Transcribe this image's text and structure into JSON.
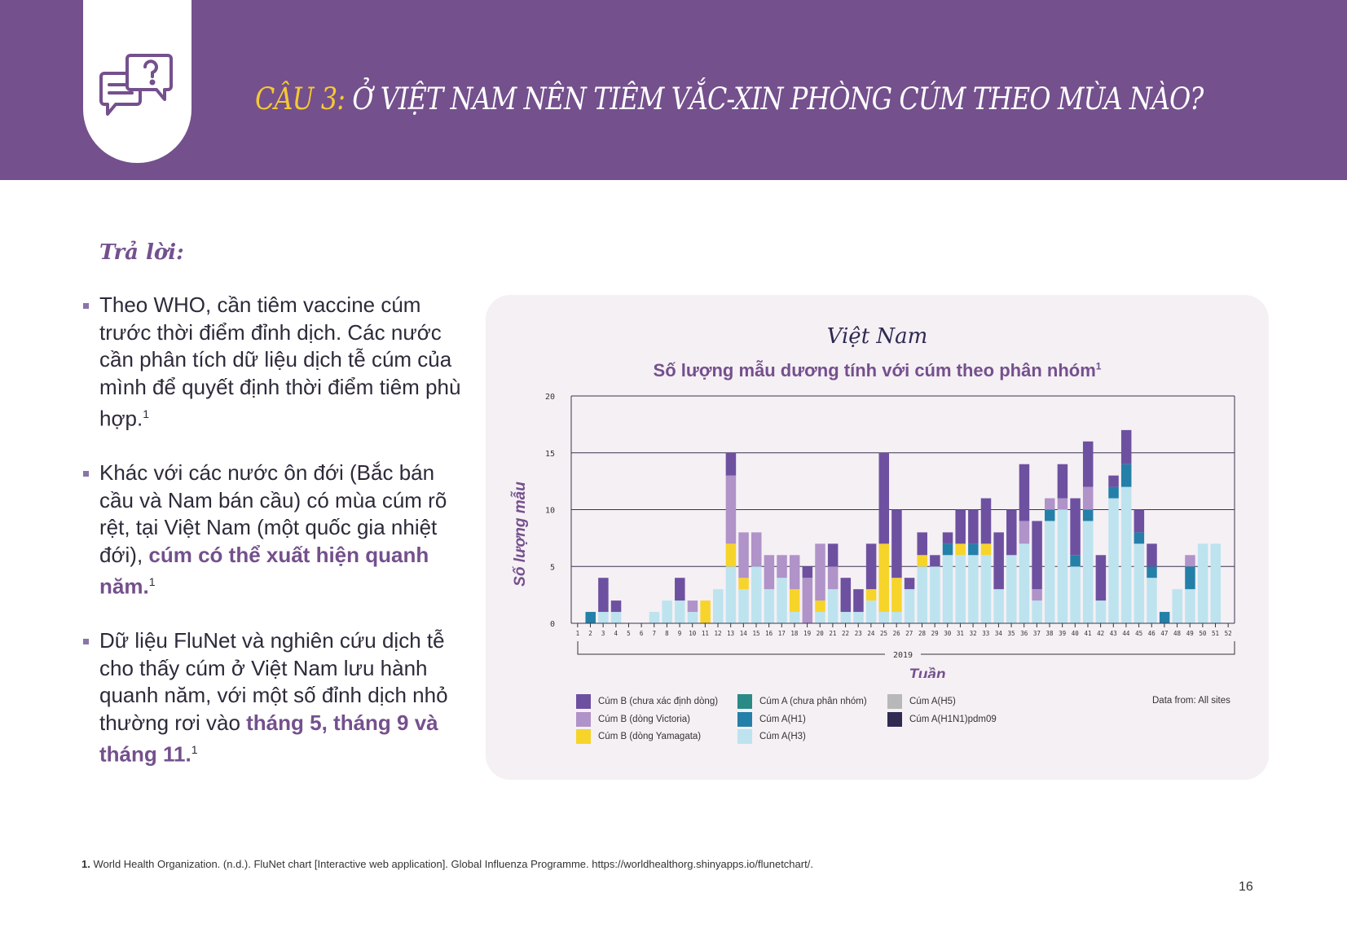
{
  "header": {
    "question_label": "CÂU 3:",
    "question_text": " Ở VIỆT NAM NÊN TIÊM VẮC-XIN PHÒNG CÚM THEO MÙA NÀO?",
    "icon": "chat-question-icon",
    "bg_color": "#74508d"
  },
  "answer_label": "Trả lời:",
  "bullets": [
    [
      {
        "t": "Theo WHO, cần tiêm vaccine cúm trước thời điểm đỉnh dịch. Các nước cần phân tích dữ liệu dịch tễ cúm của mình để quyết định thời điểm tiêm phù hợp."
      },
      {
        "t": "1",
        "sup": true
      }
    ],
    [
      {
        "t": "Khác với các nước ôn đới (Bắc bán cầu và Nam bán cầu) có mùa cúm rõ rệt, tại Việt Nam (một quốc gia nhiệt đới), "
      },
      {
        "t": "cúm có thể xuất hiện quanh năm.",
        "b": true
      },
      {
        "t": "1",
        "sup": true
      }
    ],
    [
      {
        "t": "Dữ liệu FluNet và nghiên cứu dịch tễ cho thấy cúm ở Việt Nam lưu hành quanh năm, với một số đỉnh dịch nhỏ thường rơi vào "
      },
      {
        "t": "tháng 5, tháng 9 và tháng 11.",
        "b": true
      },
      {
        "t": "1",
        "sup": true
      }
    ]
  ],
  "chart_data": {
    "type": "bar",
    "stacked": true,
    "title": "Việt Nam",
    "subtitle": "Số lượng mẫu dương tính với cúm theo phân nhóm",
    "subtitle_sup": "1",
    "ylabel": "Số lượng mẫu",
    "xlabel": "Tuần",
    "x_group_label": "2019",
    "ylim": [
      0,
      20
    ],
    "yticks": [
      0,
      5,
      10,
      15,
      20
    ],
    "grid": true,
    "note": "Data from: All sites",
    "categories": [
      "1",
      "2",
      "3",
      "4",
      "5",
      "6",
      "7",
      "8",
      "9",
      "10",
      "11",
      "12",
      "13",
      "14",
      "15",
      "16",
      "17",
      "18",
      "19",
      "20",
      "21",
      "22",
      "23",
      "24",
      "25",
      "26",
      "27",
      "28",
      "29",
      "30",
      "31",
      "32",
      "33",
      "34",
      "35",
      "36",
      "37",
      "38",
      "39",
      "40",
      "41",
      "42",
      "43",
      "44",
      "45",
      "46",
      "47",
      "48",
      "49",
      "50",
      "51",
      "52"
    ],
    "series": [
      {
        "name": "Cúm A(H3)",
        "color": "#bde3ef",
        "values": [
          0,
          0,
          1,
          1,
          0,
          0,
          1,
          2,
          2,
          1,
          0,
          3,
          5,
          3,
          5,
          3,
          4,
          1,
          0,
          1,
          3,
          1,
          1,
          2,
          1,
          1,
          3,
          5,
          5,
          6,
          6,
          6,
          6,
          3,
          6,
          7,
          2,
          9,
          10,
          5,
          9,
          2,
          11,
          12,
          7,
          4,
          0,
          3,
          3,
          7,
          7,
          0
        ]
      },
      {
        "name": "Cúm A(H1)",
        "color": "#2480a8",
        "values": [
          0,
          1,
          0,
          0,
          0,
          0,
          0,
          0,
          0,
          0,
          0,
          0,
          0,
          0,
          0,
          0,
          0,
          0,
          0,
          0,
          0,
          0,
          0,
          0,
          0,
          0,
          0,
          0,
          0,
          1,
          0,
          1,
          0,
          0,
          0,
          0,
          0,
          1,
          0,
          1,
          1,
          0,
          1,
          2,
          1,
          1,
          1,
          0,
          2,
          0,
          0,
          0
        ]
      },
      {
        "name": "Cúm A (chưa phân nhóm)",
        "color": "#2a8a86",
        "values": [
          0,
          0,
          0,
          0,
          0,
          0,
          0,
          0,
          0,
          0,
          0,
          0,
          0,
          0,
          0,
          0,
          0,
          0,
          0,
          0,
          0,
          0,
          0,
          0,
          0,
          0,
          0,
          0,
          0,
          0,
          0,
          0,
          0,
          0,
          0,
          0,
          0,
          0,
          0,
          0,
          0,
          0,
          0,
          0,
          0,
          0,
          0,
          0,
          0,
          0,
          0,
          0
        ]
      },
      {
        "name": "Cúm A(H5)",
        "color": "#b8b8b8",
        "values": [
          0,
          0,
          0,
          0,
          0,
          0,
          0,
          0,
          0,
          0,
          0,
          0,
          0,
          0,
          0,
          0,
          0,
          0,
          0,
          0,
          0,
          0,
          0,
          0,
          0,
          0,
          0,
          0,
          0,
          0,
          0,
          0,
          0,
          0,
          0,
          0,
          0,
          0,
          0,
          0,
          0,
          0,
          0,
          0,
          0,
          0,
          0,
          0,
          0,
          0,
          0,
          0
        ]
      },
      {
        "name": "Cúm A(H1N1)pdm09",
        "color": "#2f2a52",
        "values": [
          0,
          0,
          0,
          0,
          0,
          0,
          0,
          0,
          0,
          0,
          0,
          0,
          0,
          0,
          0,
          0,
          0,
          0,
          0,
          0,
          0,
          0,
          0,
          0,
          0,
          0,
          0,
          0,
          0,
          0,
          0,
          0,
          0,
          0,
          0,
          0,
          0,
          0,
          0,
          0,
          0,
          0,
          0,
          0,
          0,
          0,
          0,
          0,
          0,
          0,
          0,
          0
        ]
      },
      {
        "name": "Cúm B (dòng Yamagata)",
        "color": "#f7d42a",
        "values": [
          0,
          0,
          0,
          0,
          0,
          0,
          0,
          0,
          0,
          0,
          2,
          0,
          2,
          1,
          0,
          0,
          0,
          2,
          0,
          1,
          0,
          0,
          0,
          1,
          6,
          3,
          0,
          1,
          0,
          0,
          1,
          0,
          1,
          0,
          0,
          0,
          0,
          0,
          0,
          0,
          0,
          0,
          0,
          0,
          0,
          0,
          0,
          0,
          0,
          0,
          0,
          0
        ]
      },
      {
        "name": "Cúm B (dòng Victoria)",
        "color": "#b093c8",
        "values": [
          0,
          0,
          0,
          0,
          0,
          0,
          0,
          0,
          0,
          1,
          0,
          0,
          6,
          4,
          3,
          3,
          2,
          3,
          4,
          5,
          2,
          0,
          0,
          0,
          0,
          0,
          0,
          0,
          0,
          0,
          0,
          0,
          0,
          0,
          0,
          2,
          1,
          1,
          1,
          0,
          2,
          0,
          0,
          0,
          0,
          0,
          0,
          0,
          1,
          0,
          0,
          0
        ]
      },
      {
        "name": "Cúm B (chưa xác định dòng)",
        "color": "#6d51a0",
        "values": [
          0,
          0,
          3,
          1,
          0,
          0,
          0,
          0,
          2,
          0,
          0,
          0,
          2,
          0,
          0,
          0,
          0,
          0,
          1,
          0,
          2,
          3,
          2,
          4,
          8,
          6,
          1,
          2,
          1,
          1,
          3,
          3,
          4,
          5,
          4,
          5,
          6,
          0,
          3,
          5,
          4,
          4,
          1,
          3,
          2,
          2,
          0,
          0,
          0,
          0,
          0,
          0
        ]
      }
    ],
    "legend_order": [
      "Cúm B (chưa xác định dòng)",
      "Cúm B (dòng Victoria)",
      "Cúm B (dòng Yamagata)",
      "Cúm A (chưa phân nhóm)",
      "Cúm A(H1)",
      "Cúm A(H3)",
      "Cúm A(H5)",
      "Cúm A(H1N1)pdm09"
    ],
    "legend_placement": "bottom"
  },
  "footnote": {
    "num": "1.",
    "text": " World Health Organization. (n.d.). FluNet chart [Interactive web application]. Global Influenza Programme. https://worldhealthorg.shinyapps.io/flunetchart/."
  },
  "page_number": "16"
}
